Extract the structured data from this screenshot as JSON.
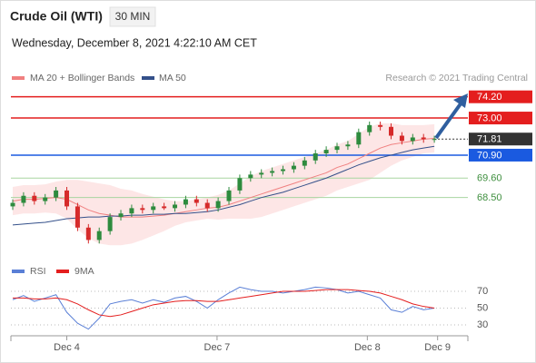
{
  "chart_data": {
    "type": "candlestick",
    "title": "Crude Oil (WTI)",
    "timeframe": "30 MIN",
    "subtitle": "Wednesday, December 8, 2021 4:22:10 AM CET",
    "credit": "Research © 2021 Trading Central",
    "xlim": [
      -0.17,
      42.1
    ],
    "xticks": [
      {
        "value": 5,
        "label": "Dec 4"
      },
      {
        "value": 18.9,
        "label": "Dec 7"
      },
      {
        "value": 32.8,
        "label": "Dec 8"
      },
      {
        "value": 39.3,
        "label": "Dec 9"
      }
    ],
    "ylim": [
      65.3,
      74.8
    ],
    "up_color": "#2e8b3e",
    "down_color": "#d62a2a",
    "open": [
      68.0,
      68.2,
      68.6,
      68.3,
      68.5,
      68.9,
      68.0,
      66.8,
      66.1,
      66.6,
      67.4,
      67.6,
      67.9,
      67.8,
      68.0,
      67.9,
      68.1,
      68.4,
      68.2,
      67.9,
      68.3,
      68.9,
      69.6,
      69.8,
      69.9,
      70.0,
      70.1,
      70.3,
      70.6,
      71.0,
      71.2,
      71.4,
      71.5,
      72.2,
      72.6,
      72.5,
      72.0,
      71.7,
      71.9,
      71.8
    ],
    "high": [
      68.4,
      68.8,
      68.8,
      68.7,
      69.1,
      69.1,
      68.2,
      67.0,
      66.8,
      67.6,
      67.8,
      68.1,
      68.1,
      68.2,
      68.2,
      68.3,
      68.6,
      68.6,
      68.4,
      68.5,
      69.1,
      69.8,
      70.0,
      70.1,
      70.2,
      70.3,
      70.5,
      70.8,
      71.2,
      71.4,
      71.6,
      71.7,
      72.4,
      72.8,
      72.8,
      72.7,
      72.2,
      72.1,
      72.1,
      72.0
    ],
    "low": [
      67.8,
      68.0,
      68.1,
      68.1,
      68.3,
      67.8,
      66.6,
      65.9,
      65.9,
      66.4,
      67.2,
      67.4,
      67.6,
      67.6,
      67.8,
      67.7,
      67.9,
      68.0,
      67.7,
      67.7,
      68.1,
      68.7,
      69.4,
      69.6,
      69.7,
      69.8,
      69.9,
      70.1,
      70.4,
      70.8,
      71.0,
      71.2,
      71.3,
      72.0,
      72.3,
      71.8,
      71.5,
      71.5,
      71.6,
      71.6
    ],
    "close": [
      68.2,
      68.6,
      68.3,
      68.5,
      68.9,
      68.0,
      66.8,
      66.1,
      66.6,
      67.4,
      67.6,
      67.9,
      67.8,
      68.0,
      67.9,
      68.1,
      68.4,
      68.2,
      67.9,
      68.3,
      68.9,
      69.6,
      69.8,
      69.9,
      70.0,
      70.1,
      70.3,
      70.6,
      71.0,
      71.2,
      71.4,
      71.5,
      72.2,
      72.6,
      72.5,
      72.0,
      71.7,
      71.9,
      71.8,
      71.81
    ],
    "bollinger": {
      "name": "MA 20 + Bollinger Bands",
      "color": "#f08080",
      "fill": "#fde0e0",
      "values": [
        68.3,
        68.4,
        68.4,
        68.45,
        68.5,
        68.4,
        68.1,
        67.8,
        67.6,
        67.5,
        67.4,
        67.4,
        67.4,
        67.45,
        67.5,
        67.6,
        67.7,
        67.8,
        67.9,
        67.95,
        68.1,
        68.3,
        68.5,
        68.7,
        68.9,
        69.1,
        69.3,
        69.5,
        69.7,
        69.9,
        70.2,
        70.4,
        70.7,
        71.0,
        71.3,
        71.5,
        71.6,
        71.7,
        71.8,
        71.85
      ],
      "upper": [
        69.1,
        69.2,
        69.2,
        69.25,
        69.4,
        69.5,
        69.5,
        69.4,
        69.3,
        69.2,
        69.0,
        68.9,
        68.7,
        68.55,
        68.4,
        68.3,
        68.3,
        68.4,
        68.5,
        68.65,
        68.9,
        69.3,
        69.7,
        70.0,
        70.2,
        70.4,
        70.6,
        70.8,
        71.0,
        71.2,
        71.5,
        71.7,
        72.1,
        72.5,
        72.7,
        72.7,
        72.6,
        72.6,
        72.6,
        72.65
      ],
      "lower": [
        67.5,
        67.6,
        67.6,
        67.65,
        67.6,
        67.3,
        66.7,
        66.2,
        65.9,
        65.8,
        65.8,
        65.9,
        66.1,
        66.35,
        66.6,
        66.9,
        67.1,
        67.2,
        67.3,
        67.25,
        67.3,
        67.3,
        67.3,
        67.4,
        67.6,
        67.8,
        68.0,
        68.2,
        68.4,
        68.6,
        68.9,
        69.1,
        69.3,
        69.5,
        69.9,
        70.3,
        70.6,
        70.8,
        71.0,
        71.05
      ]
    },
    "ma50": {
      "name": "MA 50",
      "color": "#34508a",
      "values": [
        66.95,
        67.0,
        67.05,
        67.1,
        67.2,
        67.3,
        67.35,
        67.4,
        67.4,
        67.45,
        67.45,
        67.5,
        67.5,
        67.55,
        67.55,
        67.6,
        67.6,
        67.65,
        67.7,
        67.8,
        67.95,
        68.1,
        68.3,
        68.5,
        68.65,
        68.8,
        69.0,
        69.2,
        69.4,
        69.6,
        69.85,
        70.1,
        70.35,
        70.55,
        70.75,
        70.9,
        71.05,
        71.2,
        71.3,
        71.4
      ]
    },
    "levels": [
      {
        "value": 74.2,
        "label": "74.20",
        "color": "#e41e1e",
        "box": true,
        "line": "solid"
      },
      {
        "value": 73.0,
        "label": "73.00",
        "color": "#e41e1e",
        "box": true,
        "line": "solid"
      },
      {
        "value": 71.81,
        "label": "71.81",
        "color": "#333333",
        "box": true,
        "line": "dotted"
      },
      {
        "value": 70.9,
        "label": "70.90",
        "color": "#1a5ae0",
        "box": true,
        "line": "solid"
      },
      {
        "value": 69.6,
        "label": "69.60",
        "color": "#3f8f3f",
        "box": false,
        "line": "solid"
      },
      {
        "value": 68.5,
        "label": "68.50",
        "color": "#3f8f3f",
        "box": false,
        "line": "solid"
      }
    ],
    "rsi": {
      "ylim": [
        21.4,
        81.9
      ],
      "yticks": [
        30,
        50,
        70
      ],
      "series": [
        {
          "name": "RSI",
          "color": "#5a7fd6",
          "values": [
            60,
            65,
            58,
            62,
            66,
            45,
            32,
            25,
            38,
            55,
            58,
            60,
            56,
            60,
            57,
            62,
            64,
            58,
            50,
            60,
            68,
            75,
            72,
            70,
            70,
            68,
            70,
            72,
            75,
            74,
            72,
            68,
            70,
            66,
            62,
            48,
            45,
            52,
            48,
            50
          ]
        },
        {
          "name": "9MA",
          "color": "#e41e1e",
          "values": [
            62,
            62,
            61,
            61,
            62,
            60,
            55,
            48,
            42,
            40,
            42,
            46,
            50,
            54,
            56,
            58,
            59,
            59,
            58,
            58,
            60,
            62,
            64,
            66,
            68,
            70,
            70,
            70,
            71,
            72,
            72,
            72,
            71,
            70,
            68,
            64,
            60,
            55,
            52,
            50
          ]
        }
      ]
    }
  }
}
